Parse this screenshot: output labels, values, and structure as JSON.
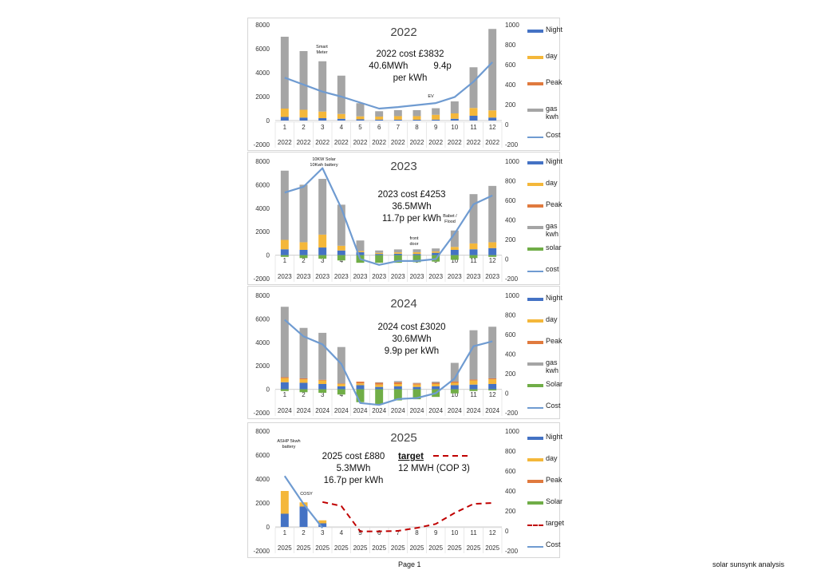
{
  "page": {
    "footer_page": "Page 1",
    "footer_right": "solar sunsynk analysis"
  },
  "colors": {
    "night": "#4472c4",
    "day": "#f4b73a",
    "peak": "#e07a3e",
    "gas": "#a5a5a5",
    "solar": "#70ad47",
    "cost": "#6f9bd1",
    "target": "#c00000"
  },
  "chart_data": [
    {
      "type": "bar",
      "stacked": true,
      "title": "2022",
      "categories": [
        "1",
        "2",
        "3",
        "4",
        "5",
        "6",
        "7",
        "8",
        "9",
        "10",
        "11",
        "12"
      ],
      "year_labels": [
        "2022",
        "2022",
        "2022",
        "2022",
        "2022",
        "2022",
        "2022",
        "2022",
        "2022",
        "2022",
        "2022",
        "2022"
      ],
      "ylim": [
        -2000,
        8000
      ],
      "y_ticks": [
        "8000",
        "6000",
        "4000",
        "2000",
        "0",
        "-2000"
      ],
      "y2lim": [
        -200,
        1000
      ],
      "y2_ticks": [
        "1000",
        "800",
        "600",
        "400",
        "200",
        "0",
        "-200"
      ],
      "series": [
        {
          "name": "Night",
          "color": "#4472c4",
          "values": [
            300,
            250,
            200,
            150,
            100,
            80,
            70,
            70,
            80,
            150,
            400,
            250
          ]
        },
        {
          "name": "day",
          "color": "#f4b73a",
          "values": [
            700,
            650,
            550,
            400,
            250,
            250,
            300,
            300,
            400,
            450,
            650,
            600
          ]
        },
        {
          "name": "Peak",
          "color": "#e07a3e",
          "values": [
            0,
            0,
            0,
            0,
            0,
            0,
            0,
            0,
            0,
            0,
            0,
            0
          ]
        },
        {
          "name": "gas kwh",
          "color": "#a5a5a5",
          "values": [
            6000,
            4900,
            4200,
            3200,
            1100,
            450,
            500,
            500,
            550,
            1000,
            3400,
            6800
          ]
        }
      ],
      "line_series": [
        {
          "name": "Cost",
          "axis": "secondary",
          "style": "solid",
          "color": "#6f9bd1",
          "values": [
            470,
            400,
            330,
            280,
            220,
            160,
            175,
            195,
            215,
            275,
            430,
            625
          ]
        }
      ],
      "legend": [
        "Night",
        "day",
        "Peak",
        "gas kwh",
        "Cost"
      ],
      "info_lines": [
        "2022 cost £3832",
        "40.6MWh          9.4p",
        "per kWh"
      ],
      "notes": [
        {
          "text": "Smart Meter",
          "month": 3
        },
        {
          "text": "EV",
          "month": 9
        }
      ]
    },
    {
      "type": "bar",
      "stacked": true,
      "title": "2023",
      "categories": [
        "1",
        "2",
        "3",
        "4",
        "5",
        "6",
        "7",
        "8",
        "9",
        "10",
        "11",
        "12"
      ],
      "year_labels": [
        "2023",
        "2023",
        "2023",
        "2023",
        "2023",
        "2023",
        "2023",
        "2023",
        "2023",
        "2023",
        "2023",
        "2023"
      ],
      "ylim": [
        -2000,
        8000
      ],
      "y_ticks": [
        "8000",
        "6000",
        "4000",
        "2000",
        "0",
        "-2000"
      ],
      "y2lim": [
        -200,
        1000
      ],
      "y2_ticks": [
        "1000",
        "800",
        "600",
        "400",
        "200",
        "0",
        "-200"
      ],
      "series": [
        {
          "name": "Night",
          "color": "#4472c4",
          "values": [
            500,
            450,
            650,
            400,
            250,
            100,
            120,
            100,
            200,
            450,
            500,
            600
          ]
        },
        {
          "name": "day",
          "color": "#f4b73a",
          "values": [
            800,
            650,
            1100,
            400,
            100,
            100,
            120,
            150,
            120,
            250,
            500,
            500
          ]
        },
        {
          "name": "Peak",
          "color": "#e07a3e",
          "values": [
            0,
            0,
            0,
            0,
            0,
            0,
            0,
            0,
            0,
            0,
            0,
            0
          ]
        },
        {
          "name": "gas kwh",
          "color": "#a5a5a5",
          "values": [
            5900,
            4900,
            4750,
            3500,
            900,
            200,
            250,
            250,
            250,
            1400,
            4200,
            4800
          ]
        },
        {
          "name": "solar",
          "color": "#70ad47",
          "values": [
            -150,
            -250,
            -300,
            -450,
            -650,
            -650,
            -650,
            -600,
            -550,
            -400,
            -250,
            -150
          ]
        }
      ],
      "line_series": [
        {
          "name": "cost",
          "axis": "secondary",
          "style": "solid",
          "color": "#6f9bd1",
          "values": [
            680,
            740,
            930,
            520,
            0,
            -60,
            -20,
            -20,
            0,
            260,
            560,
            650
          ]
        }
      ],
      "legend": [
        "Night",
        "day",
        "Peak",
        "gas kwh",
        "solar",
        "cost"
      ],
      "info_lines": [
        "2023 cost £4253",
        "36.5MWh",
        "11.7p per kWh"
      ],
      "notes": [
        {
          "text": "10KW Solar 10Kwh battery",
          "month": 3
        },
        {
          "text": "front door",
          "month": 8
        },
        {
          "text": "Babet / Flood",
          "month": 10
        }
      ]
    },
    {
      "type": "bar",
      "stacked": true,
      "title": "2024",
      "categories": [
        "1",
        "2",
        "3",
        "4",
        "5",
        "6",
        "7",
        "8",
        "9",
        "10",
        "11",
        "12"
      ],
      "year_labels": [
        "2024",
        "2024",
        "2024",
        "2024",
        "2024",
        "2024",
        "2024",
        "2024",
        "2024",
        "2024",
        "2024",
        "2024"
      ],
      "ylim": [
        -2000,
        8000
      ],
      "y_ticks": [
        "8000",
        "6000",
        "4000",
        "2000",
        "0",
        "-2000"
      ],
      "y2lim": [
        -200,
        1000
      ],
      "y2_ticks": [
        "1000",
        "800",
        "600",
        "400",
        "200",
        "0",
        "-200"
      ],
      "series": [
        {
          "name": "Night",
          "color": "#4472c4",
          "values": [
            600,
            550,
            450,
            250,
            350,
            200,
            250,
            200,
            250,
            350,
            400,
            450
          ]
        },
        {
          "name": "day",
          "color": "#f4b73a",
          "values": [
            350,
            300,
            300,
            200,
            150,
            200,
            200,
            200,
            200,
            200,
            350,
            400
          ]
        },
        {
          "name": "Peak",
          "color": "#e07a3e",
          "values": [
            80,
            80,
            60,
            50,
            150,
            150,
            150,
            100,
            100,
            100,
            80,
            80
          ]
        },
        {
          "name": "gas kwh",
          "color": "#a5a5a5",
          "values": [
            6000,
            4300,
            4000,
            3100,
            0,
            50,
            100,
            50,
            100,
            1600,
            4200,
            4400
          ]
        },
        {
          "name": "Solar",
          "color": "#70ad47",
          "values": [
            -150,
            -250,
            -300,
            -450,
            -1100,
            -1250,
            -950,
            -850,
            -650,
            -350,
            -150,
            -100
          ]
        }
      ],
      "line_series": [
        {
          "name": "Cost",
          "axis": "secondary",
          "style": "solid",
          "color": "#6f9bd1",
          "values": [
            750,
            580,
            500,
            300,
            -100,
            -120,
            -60,
            -50,
            0,
            150,
            480,
            530
          ]
        }
      ],
      "legend": [
        "Night",
        "day",
        "Peak",
        "gas kwh",
        "Solar",
        "Cost"
      ],
      "info_lines": [
        "2024 cost £3020",
        "30.6MWh",
        "9.9p per kWh"
      ],
      "notes": []
    },
    {
      "type": "bar",
      "stacked": true,
      "title": "2025",
      "categories": [
        "1",
        "2",
        "3",
        "4",
        "5",
        "6",
        "7",
        "8",
        "9",
        "10",
        "11",
        "12"
      ],
      "year_labels": [
        "2025",
        "2025",
        "2025",
        "2025",
        "2025",
        "2025",
        "2025",
        "2025",
        "2025",
        "2025",
        "2025",
        "2025"
      ],
      "ylim": [
        -2000,
        8000
      ],
      "y_ticks": [
        "8000",
        "6000",
        "4000",
        "2000",
        "0",
        "-2000"
      ],
      "y2lim": [
        -200,
        1000
      ],
      "y2_ticks": [
        "1000",
        "800",
        "600",
        "400",
        "200",
        "0",
        "-200"
      ],
      "series": [
        {
          "name": "Night",
          "color": "#4472c4",
          "values": [
            1100,
            1700,
            300,
            0,
            0,
            0,
            0,
            0,
            0,
            0,
            0,
            0
          ]
        },
        {
          "name": "day",
          "color": "#f4b73a",
          "values": [
            1900,
            350,
            250,
            0,
            0,
            0,
            0,
            0,
            0,
            0,
            0,
            0
          ]
        },
        {
          "name": "Peak",
          "color": "#e07a3e",
          "values": [
            0,
            0,
            0,
            0,
            0,
            0,
            0,
            0,
            0,
            0,
            0,
            0
          ]
        },
        {
          "name": "Solar",
          "color": "#70ad47",
          "values": [
            0,
            0,
            0,
            0,
            0,
            0,
            0,
            0,
            0,
            0,
            0,
            0
          ]
        }
      ],
      "line_series": [
        {
          "name": "target",
          "axis": "secondary",
          "style": "dashed",
          "color": "#c00000",
          "start_index": 2,
          "values": [
            null,
            null,
            290,
            250,
            -5,
            -5,
            0,
            30,
            70,
            180,
            270,
            280
          ]
        },
        {
          "name": "Cost",
          "axis": "secondary",
          "style": "solid",
          "color": "#6f9bd1",
          "values": [
            550,
            270,
            30,
            null,
            null,
            null,
            null,
            null,
            null,
            null,
            null,
            null
          ]
        }
      ],
      "legend": [
        "Night",
        "day",
        "Peak",
        "Solar",
        "target",
        "Cost"
      ],
      "info_lines": [
        "2025 cost £880",
        "5.3MWh",
        "16.7p per kWh"
      ],
      "target_box": {
        "title": "target",
        "text": "12 MWH (COP 3)"
      },
      "notes": [
        {
          "text": "ASHP 5kwh battery",
          "month": 1
        },
        {
          "text": "COSY",
          "month": 2
        }
      ]
    }
  ]
}
